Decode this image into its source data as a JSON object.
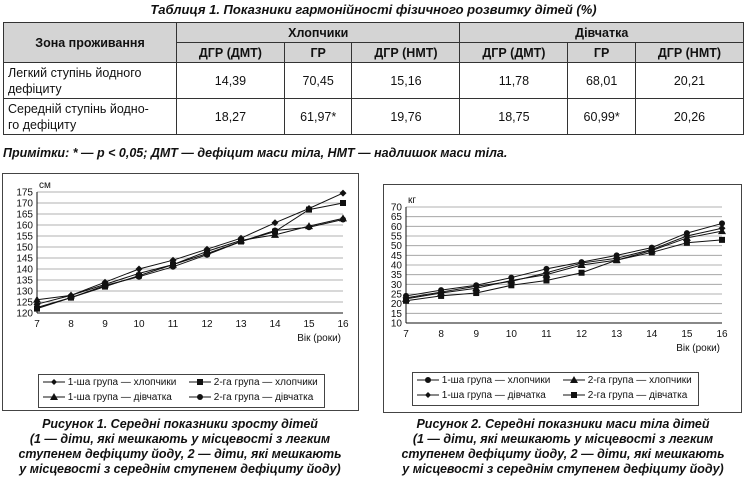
{
  "table": {
    "caption": "Таблиця 1. Показники гармонійності фізичного розвитку дітей (%)",
    "zone_header": "Зона проживання",
    "group_headers": [
      "Хлопчики",
      "Дівчатка"
    ],
    "sub_headers": [
      "ДГР (ДМТ)",
      "ГР",
      "ДГР (НМТ)",
      "ДГР (ДМТ)",
      "ГР",
      "ДГР (НМТ)"
    ],
    "rows": [
      {
        "zone_line1": "Легкий ступінь йодного",
        "zone_line2": "дефіциту",
        "values": [
          "14,39",
          "70,45",
          "15,16",
          "11,78",
          "68,01",
          "20,21"
        ]
      },
      {
        "zone_line1": "Середній ступінь йодно-",
        "zone_line2": "го дефіциту",
        "values": [
          "18,27",
          "61,97*",
          "19,76",
          "18,75",
          "60,99*",
          "20,26"
        ]
      }
    ]
  },
  "notes": "Примітки: * — p < 0,05; ДМТ — дефіцит маси тіла, НМТ — надлишок маси тіла.",
  "chart_data": [
    {
      "type": "line",
      "unit_label": "см",
      "xlabel": "Вік (роки)",
      "x": [
        7,
        8,
        9,
        10,
        11,
        12,
        13,
        14,
        15,
        16
      ],
      "ylim": [
        120,
        175
      ],
      "yticks": [
        120,
        125,
        130,
        135,
        140,
        145,
        150,
        155,
        160,
        165,
        170,
        175
      ],
      "grid": true,
      "legend_position": "bottom",
      "series": [
        {
          "name": "1-ша група — хлопчики",
          "marker": "diamond",
          "values": [
            124,
            128,
            134,
            140,
            144,
            149,
            154,
            161,
            167.5,
            174.5
          ]
        },
        {
          "name": "2-га група — хлопчики",
          "marker": "square",
          "values": [
            122,
            127,
            132,
            137,
            142,
            147,
            152.5,
            157,
            167,
            170
          ]
        },
        {
          "name": "1-ша група — дівчатка",
          "marker": "triangle",
          "values": [
            126,
            128,
            133,
            138,
            142,
            148,
            153,
            155.5,
            159.5,
            163
          ]
        },
        {
          "name": "2-га група — дівчатка",
          "marker": "circle",
          "values": [
            122.5,
            127,
            132.5,
            136.5,
            141,
            146.5,
            152.5,
            157.5,
            159,
            162.5
          ]
        }
      ],
      "caption_lines": [
        "Рисунок 1. Середні показники зросту дітей",
        "(1 — діти, які мешкають у місцевості з легким",
        "ступенем дефіциту йоду, 2 — діти, які мешкають",
        "у місцевості з середнім ступенем дефіциту йоду)"
      ]
    },
    {
      "type": "line",
      "unit_label": "кг",
      "xlabel": "Вік (роки)",
      "x": [
        7,
        8,
        9,
        10,
        11,
        12,
        13,
        14,
        15,
        16
      ],
      "ylim": [
        10,
        70
      ],
      "yticks": [
        10,
        15,
        20,
        25,
        30,
        35,
        40,
        45,
        50,
        55,
        60,
        65,
        70
      ],
      "grid": true,
      "legend_position": "bottom",
      "series": [
        {
          "name": "1-ша група — хлопчики",
          "marker": "circle",
          "values": [
            24,
            27,
            29.5,
            33.5,
            38,
            41.5,
            45,
            49,
            56.5,
            61.5
          ]
        },
        {
          "name": "2-га група — хлопчики",
          "marker": "triangle",
          "values": [
            22.5,
            25.5,
            28,
            32,
            35,
            40,
            42.5,
            47.5,
            54,
            57.5
          ]
        },
        {
          "name": "1-ша група — дівчатка",
          "marker": "diamond",
          "values": [
            23,
            26,
            29,
            31.5,
            36,
            41,
            43.5,
            48,
            55,
            59
          ]
        },
        {
          "name": "2-га група — дівчатка",
          "marker": "square",
          "values": [
            21.5,
            24,
            25.5,
            29.5,
            32,
            36,
            42.5,
            46.5,
            51.5,
            53
          ]
        }
      ],
      "caption_lines": [
        "Рисунок 2. Середні показники маси тіла дітей",
        "(1 — діти, які мешкають у місцевості з легким",
        "ступенем дефіциту йоду, 2 — діти, які мешкають",
        "у місцевості з середнім ступенем дефіциту йоду)"
      ]
    }
  ]
}
